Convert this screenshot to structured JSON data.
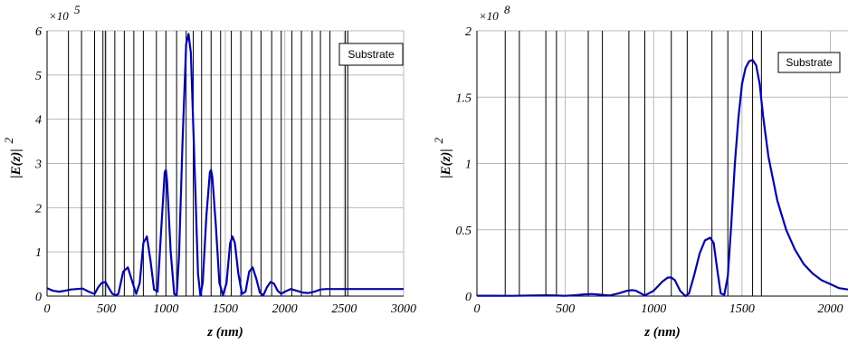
{
  "chart_data": [
    {
      "type": "line",
      "xlabel": "z (nm)",
      "ylabel": "|E(z)|",
      "ylabel_sup": "2",
      "exponent_label": "×10",
      "exponent_sup": "5",
      "xlim": [
        0,
        3000
      ],
      "ylim": [
        0,
        6
      ],
      "xticks": [
        0,
        500,
        1000,
        1500,
        2000,
        2500,
        3000
      ],
      "xtick_labels": [
        "0",
        "500",
        "1000",
        "1500",
        "2000",
        "2500",
        "3000"
      ],
      "yticks": [
        0,
        1,
        2,
        3,
        4,
        5,
        6
      ],
      "ytick_labels": [
        "0",
        "1",
        "2",
        "3",
        "4",
        "5",
        "6"
      ],
      "grid": true,
      "legend": {
        "label": "Substrate",
        "placement": "top-right"
      },
      "color": "#0000cc",
      "layer_boundaries": [
        180,
        290,
        400,
        470,
        490,
        570,
        650,
        730,
        810,
        920,
        1000,
        1090,
        1170,
        1230,
        1300,
        1380,
        1460,
        1550,
        1630,
        1720,
        1800,
        1890,
        1970,
        2060,
        2140,
        2230,
        2300,
        2380,
        2510,
        2530
      ],
      "series": [
        {
          "x": [
            0,
            50,
            100,
            150,
            200,
            250,
            300,
            350,
            400,
            430,
            460,
            490,
            520,
            550,
            580,
            600,
            640,
            680,
            720,
            750,
            780,
            810,
            840,
            870,
            900,
            930,
            960,
            990,
            1000,
            1010,
            1040,
            1070,
            1090,
            1110,
            1140,
            1170,
            1190,
            1210,
            1240,
            1270,
            1290,
            1310,
            1340,
            1370,
            1380,
            1390,
            1420,
            1450,
            1480,
            1510,
            1540,
            1560,
            1580,
            1610,
            1640,
            1670,
            1700,
            1730,
            1760,
            1790,
            1820,
            1850,
            1880,
            1910,
            1940,
            1970,
            2000,
            2050,
            2100,
            2150,
            2200,
            2250,
            2300,
            2350,
            2400,
            2500,
            2600,
            2800,
            3000
          ],
          "y": [
            0.18,
            0.12,
            0.1,
            0.12,
            0.15,
            0.16,
            0.17,
            0.1,
            0.05,
            0.2,
            0.3,
            0.32,
            0.18,
            0.05,
            0.02,
            0.05,
            0.55,
            0.65,
            0.3,
            0.05,
            0.3,
            1.2,
            1.35,
            0.8,
            0.15,
            0.1,
            1.5,
            2.8,
            2.85,
            2.6,
            1.0,
            0.05,
            0.02,
            0.9,
            3.5,
            5.7,
            5.93,
            5.5,
            3.0,
            0.5,
            0.02,
            0.3,
            1.8,
            2.8,
            2.85,
            2.7,
            1.6,
            0.3,
            0.02,
            0.3,
            1.2,
            1.35,
            1.2,
            0.5,
            0.05,
            0.1,
            0.55,
            0.65,
            0.4,
            0.08,
            0.02,
            0.2,
            0.32,
            0.28,
            0.12,
            0.05,
            0.1,
            0.16,
            0.12,
            0.08,
            0.07,
            0.1,
            0.15,
            0.16,
            0.16,
            0.16,
            0.16,
            0.16,
            0.16
          ]
        }
      ]
    },
    {
      "type": "line",
      "xlabel": "z (nm)",
      "ylabel": "|E(z)|",
      "ylabel_sup": "2",
      "exponent_label": "×10",
      "exponent_sup": "8",
      "xlim": [
        0,
        2100
      ],
      "ylim": [
        0,
        2
      ],
      "xticks": [
        0,
        500,
        1000,
        1500,
        2000
      ],
      "xtick_labels": [
        "0",
        "500",
        "1000",
        "1500",
        "2000"
      ],
      "yticks": [
        0,
        0.5,
        1,
        1.5,
        2
      ],
      "ytick_labels": [
        "0",
        "0.5",
        "1",
        "1.5",
        "2"
      ],
      "grid": true,
      "legend": {
        "label": "Substrate",
        "placement": "top-right"
      },
      "color": "#0000cc",
      "layer_boundaries": [
        160,
        240,
        390,
        450,
        630,
        710,
        860,
        950,
        1100,
        1190,
        1330,
        1420,
        1560,
        1610
      ],
      "series": [
        {
          "x": [
            0,
            100,
            200,
            300,
            400,
            450,
            500,
            550,
            600,
            650,
            700,
            750,
            800,
            850,
            880,
            900,
            950,
            1000,
            1050,
            1080,
            1100,
            1120,
            1150,
            1180,
            1200,
            1230,
            1260,
            1290,
            1320,
            1340,
            1360,
            1380,
            1400,
            1420,
            1440,
            1460,
            1480,
            1500,
            1520,
            1540,
            1560,
            1580,
            1600,
            1620,
            1650,
            1700,
            1750,
            1800,
            1850,
            1900,
            1950,
            2000,
            2050,
            2100
          ],
          "y": [
            0.003,
            0.003,
            0.002,
            0.004,
            0.006,
            0.004,
            0.002,
            0.006,
            0.012,
            0.016,
            0.01,
            0.004,
            0.02,
            0.04,
            0.045,
            0.04,
            0.005,
            0.04,
            0.11,
            0.14,
            0.14,
            0.12,
            0.04,
            0.0,
            0.02,
            0.16,
            0.32,
            0.42,
            0.44,
            0.4,
            0.2,
            0.02,
            0.01,
            0.15,
            0.55,
            1.0,
            1.35,
            1.6,
            1.72,
            1.77,
            1.78,
            1.74,
            1.6,
            1.35,
            1.05,
            0.72,
            0.5,
            0.35,
            0.24,
            0.17,
            0.12,
            0.09,
            0.06,
            0.05
          ]
        }
      ]
    }
  ]
}
